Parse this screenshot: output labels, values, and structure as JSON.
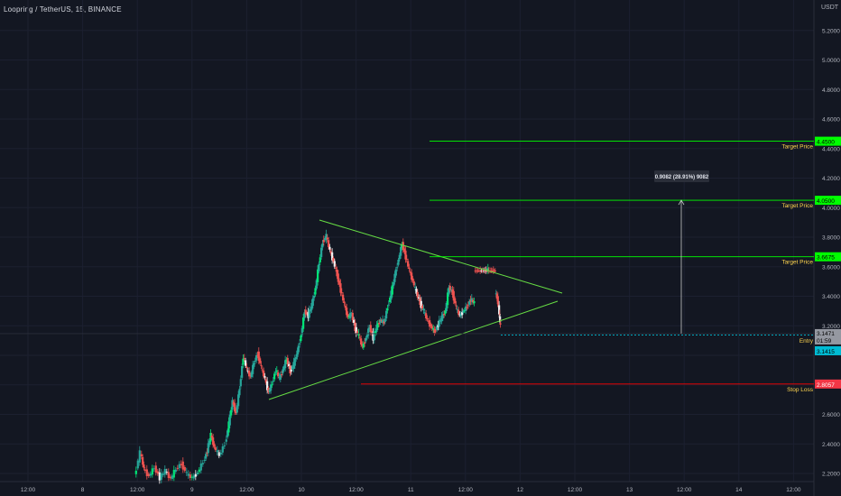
{
  "chart_data": {
    "type": "candlestick",
    "title": "Loopring / TetherUS, 15, BINANCE",
    "currency": "USDT",
    "ylim": [
      2.1,
      5.3
    ],
    "y_ticks": [
      "5.2000",
      "5.0000",
      "4.8000",
      "4.6000",
      "4.4000",
      "4.2000",
      "4.0000",
      "3.8000",
      "3.6000",
      "3.4000",
      "3.2000",
      "2.8000",
      "2.6000",
      "2.4000",
      "2.2000"
    ],
    "x_ticks": [
      "12:00",
      "8",
      "12:00",
      "9",
      "12:00",
      "10",
      "12:00",
      "11",
      "12:00",
      "12",
      "12:00",
      "13",
      "12:00",
      "14",
      "12:00"
    ],
    "target_lines": [
      {
        "label": "Target Price",
        "value": "4.4500",
        "price": 4.45
      },
      {
        "label": "Target Price",
        "value": "4.0500",
        "price": 4.05
      },
      {
        "label": "Target Price",
        "value": "3.6675",
        "price": 3.6675
      }
    ],
    "entry": {
      "label": "Entry",
      "value": "3.1415",
      "price": 3.1415
    },
    "stop": {
      "label": "Stop Loss",
      "value": "2.8057",
      "price": 2.8057
    },
    "current": {
      "price_label": "3.1471",
      "countdown": "01:59",
      "price": 3.1471
    },
    "measure_label": "0.9082 (28.91%) 9082",
    "colors": {
      "bg": "#131722",
      "up": "#26a69a",
      "down": "#ef5350",
      "bright_up": "#00e676",
      "target": "#00ff00",
      "stop": "#ff0000",
      "entry": "#00bcd4",
      "triangle": "#66dd44"
    }
  }
}
